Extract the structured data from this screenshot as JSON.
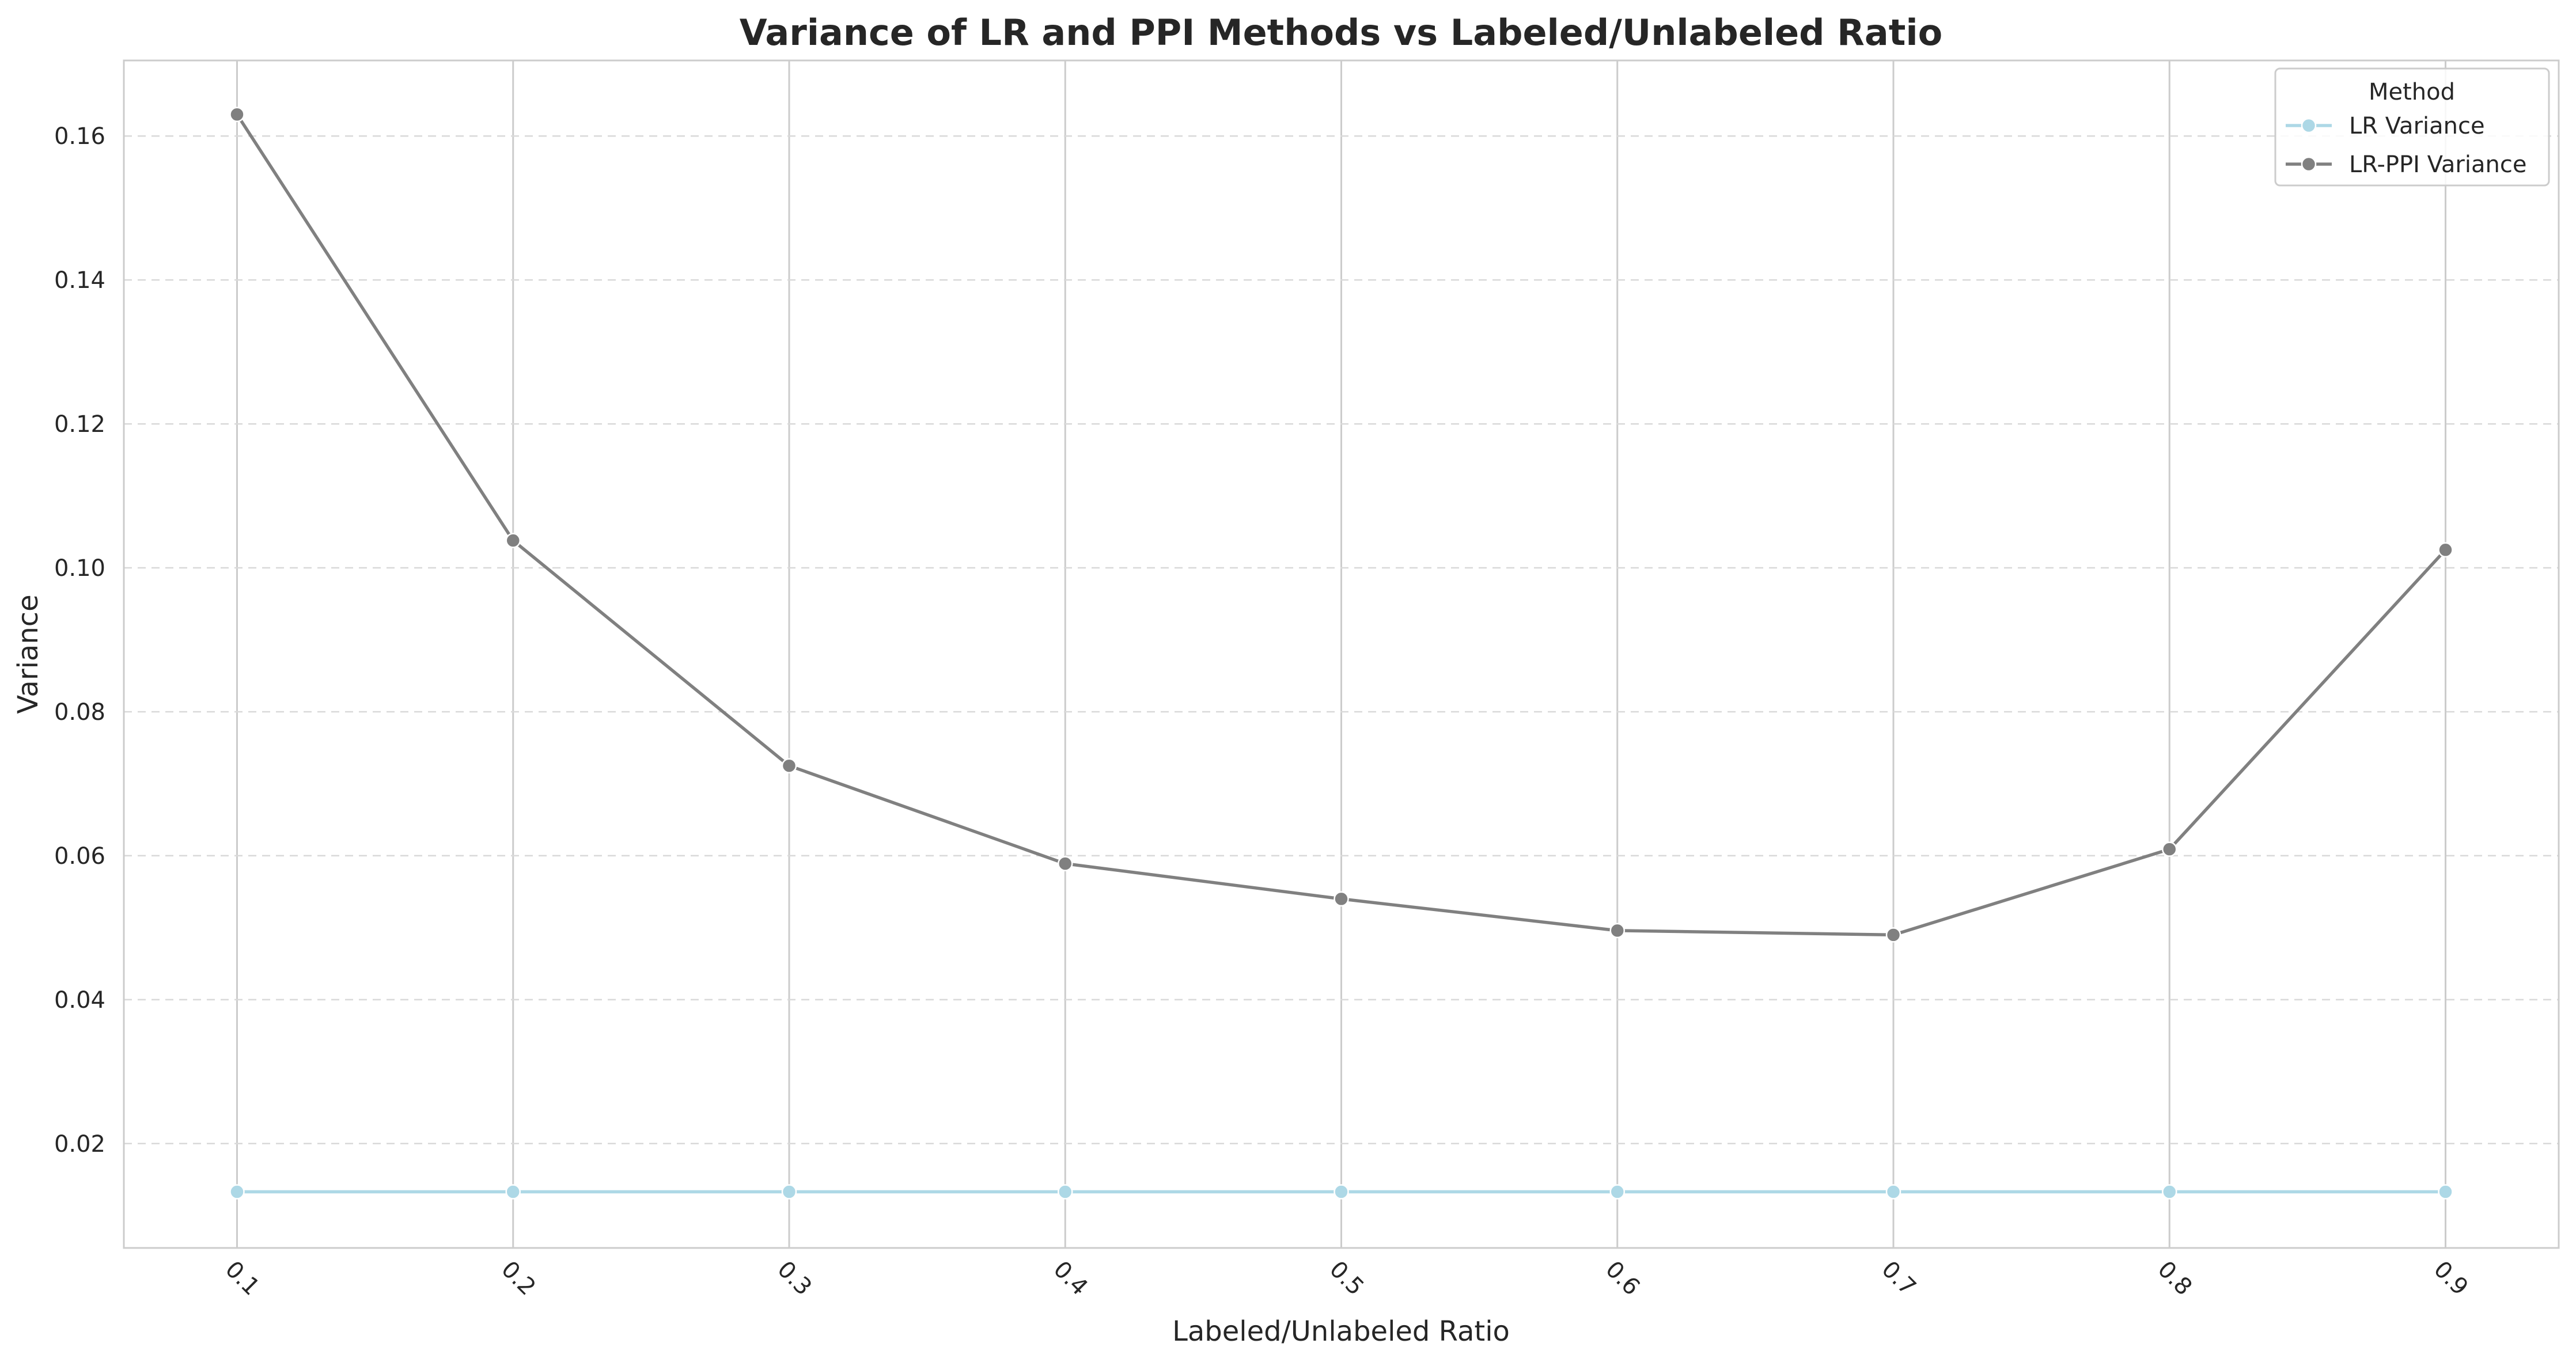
{
  "chart_data": {
    "type": "line",
    "title": "Variance of LR and PPI Methods vs Labeled/Unlabeled Ratio",
    "xlabel": "Labeled/Unlabeled Ratio",
    "ylabel": "Variance",
    "x": [
      0.1,
      0.2,
      0.3,
      0.4,
      0.5,
      0.6,
      0.7,
      0.8,
      0.9
    ],
    "x_tick_labels": [
      "0.1",
      "0.2",
      "0.3",
      "0.4",
      "0.5",
      "0.6",
      "0.7",
      "0.8",
      "0.9"
    ],
    "x_tick_rotation_deg": 45,
    "xlim": [
      0.059,
      0.941
    ],
    "ylim": [
      0.0055,
      0.1705
    ],
    "y_ticks": [
      0.02,
      0.04,
      0.06,
      0.08,
      0.1,
      0.12,
      0.14,
      0.16
    ],
    "y_tick_labels": [
      "0.02",
      "0.04",
      "0.06",
      "0.08",
      "0.10",
      "0.12",
      "0.14",
      "0.16"
    ],
    "grid": {
      "x": "solid",
      "y": "dashed"
    },
    "legend": {
      "title": "Method",
      "position": "top-right"
    },
    "series": [
      {
        "name": "LR Variance",
        "color": "#add8e6",
        "marker": "circle",
        "values": [
          0.0133,
          0.0133,
          0.0133,
          0.0133,
          0.0133,
          0.0133,
          0.0133,
          0.0133,
          0.0133
        ]
      },
      {
        "name": "LR-PPI Variance",
        "color": "#808080",
        "marker": "circle",
        "values": [
          0.163,
          0.1038,
          0.0725,
          0.0589,
          0.054,
          0.0496,
          0.049,
          0.0609,
          0.1025
        ]
      }
    ]
  }
}
